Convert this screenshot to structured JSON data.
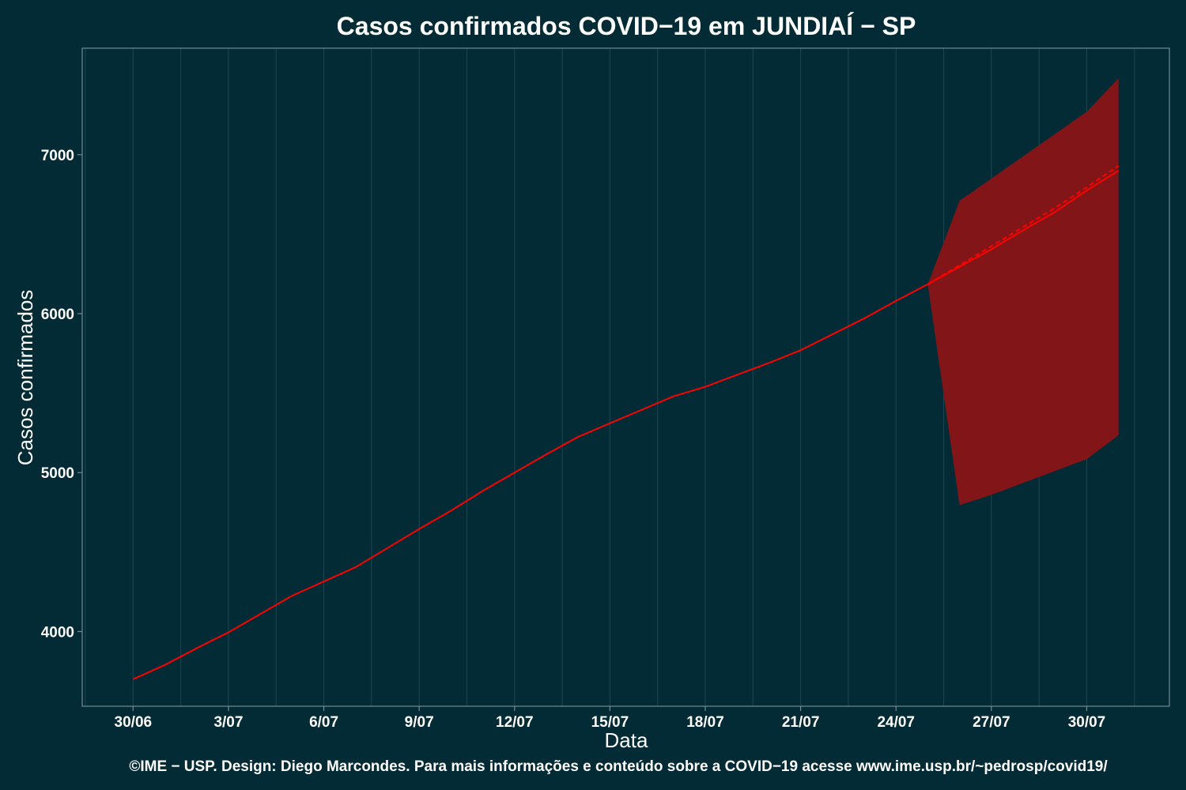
{
  "chart_data": {
    "type": "line",
    "title": "Casos confirmados COVID−19 em JUNDIAÍ − SP",
    "xlabel": "Data",
    "ylabel": "Casos confirmados",
    "caption": "©IME − USP. Design: Diego Marcondes. Para mais informações e conteúdo sobre a COVID−19 acesse www.ime.usp.br/~pedrosp/covid19/",
    "x_tick_labels": [
      "30/06",
      "3/07",
      "6/07",
      "9/07",
      "12/07",
      "15/07",
      "18/07",
      "21/07",
      "24/07",
      "27/07",
      "30/07"
    ],
    "x_ticks_day_index": [
      0,
      3,
      6,
      9,
      12,
      15,
      18,
      21,
      24,
      27,
      30
    ],
    "xlim_day_index": [
      -1.6,
      32.6
    ],
    "y_ticks": [
      4000,
      5000,
      6000,
      7000
    ],
    "ylim": [
      3530,
      7670
    ],
    "grid": true,
    "colors": {
      "background": "#022b36",
      "grid": "#1b4650",
      "line": "#ff0000",
      "band": "#821518",
      "frame": "#6f8c92"
    },
    "observed": {
      "dates": [
        "30/06",
        "1/07",
        "2/07",
        "3/07",
        "4/07",
        "5/07",
        "6/07",
        "7/07",
        "8/07",
        "9/07",
        "10/07",
        "11/07",
        "12/07",
        "13/07",
        "14/07",
        "15/07",
        "16/07",
        "17/07",
        "18/07",
        "19/07",
        "20/07",
        "21/07",
        "22/07",
        "23/07",
        "24/07",
        "25/07"
      ],
      "day_index": [
        0,
        1,
        2,
        3,
        4,
        5,
        6,
        7,
        8,
        9,
        10,
        11,
        12,
        13,
        14,
        15,
        16,
        17,
        18,
        19,
        20,
        21,
        22,
        23,
        24,
        25
      ],
      "values": [
        3700,
        3790,
        3895,
        3995,
        4110,
        4225,
        4315,
        4405,
        4525,
        4645,
        4760,
        4885,
        5000,
        5115,
        5225,
        5310,
        5395,
        5480,
        5540,
        5615,
        5690,
        5770,
        5870,
        5970,
        6080,
        6185
      ]
    },
    "forecast": {
      "dates": [
        "25/07",
        "26/07",
        "27/07",
        "28/07",
        "29/07",
        "30/07",
        "31/07"
      ],
      "day_index": [
        25,
        26,
        27,
        28,
        29,
        30,
        31
      ],
      "values": [
        6185,
        6295,
        6405,
        6525,
        6640,
        6775,
        6900
      ],
      "dashed_values": [
        6185,
        6305,
        6425,
        6545,
        6665,
        6795,
        6930
      ],
      "lower": [
        6185,
        4795,
        4860,
        4935,
        5010,
        5085,
        5235
      ],
      "upper": [
        6185,
        6710,
        6850,
        6990,
        7130,
        7270,
        7480
      ]
    }
  }
}
